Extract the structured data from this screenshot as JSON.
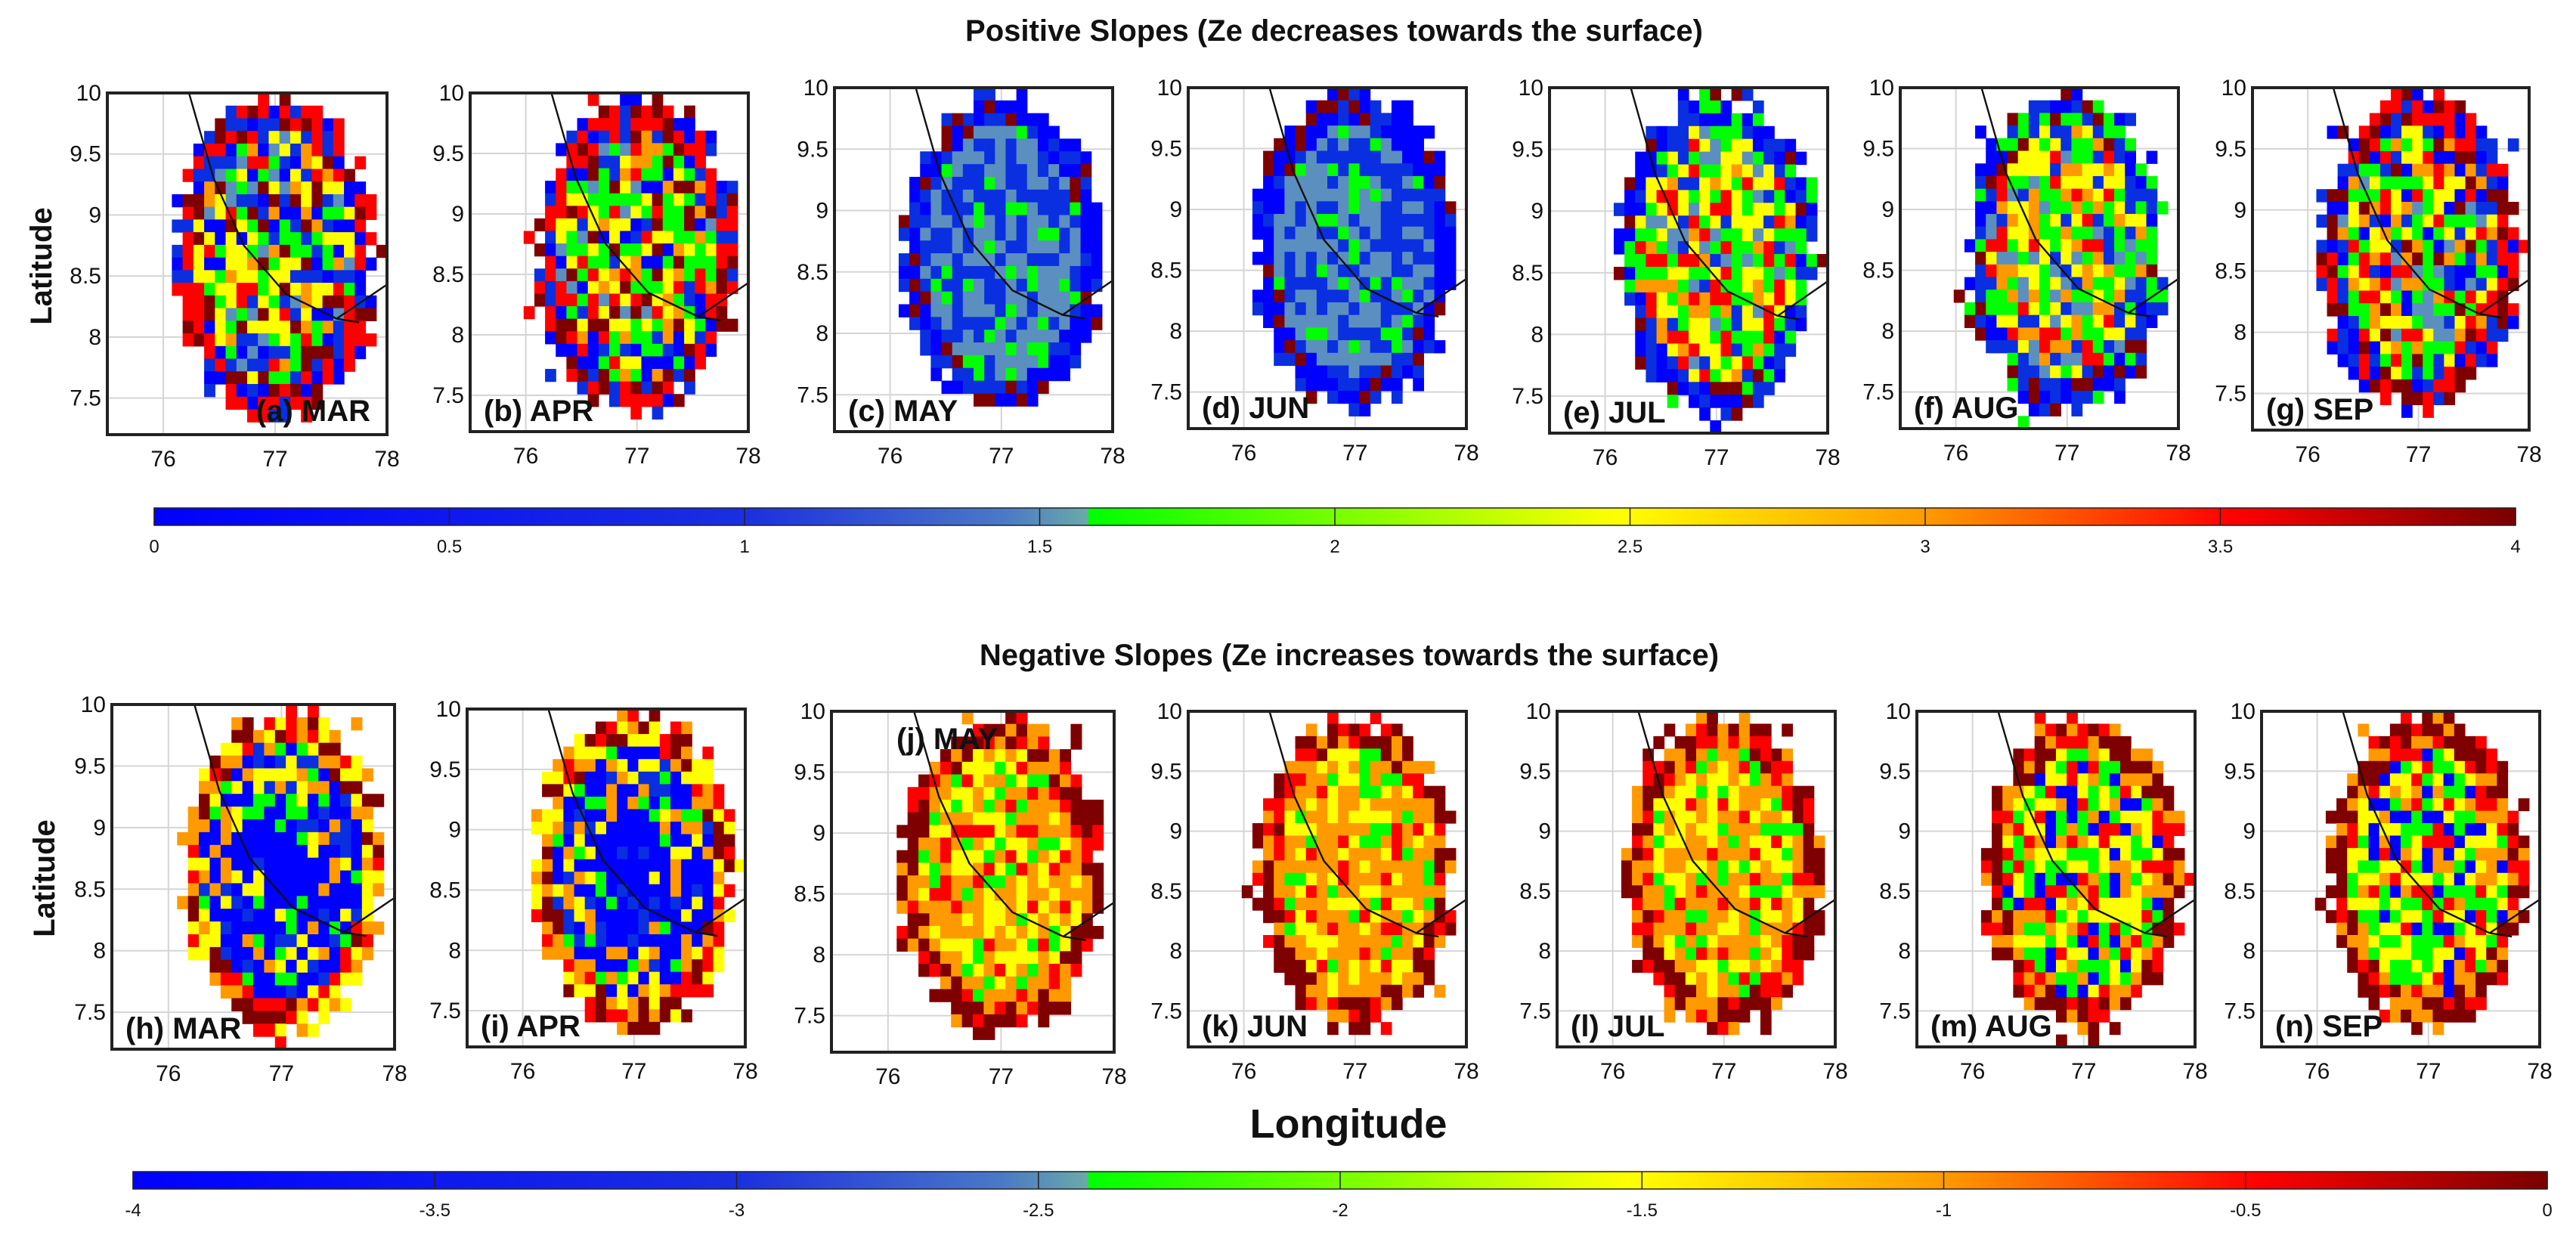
{
  "chart_data": {
    "type": "heatmap",
    "rows": [
      {
        "title": "Positive Slopes (Ze decreases towards the surface)",
        "colorbar": {
          "min": 0,
          "max": 4,
          "ticks": [
            "0",
            "0.5",
            "1",
            "1.5",
            "2",
            "2.5",
            "3",
            "3.5",
            "4"
          ]
        },
        "panels": [
          {
            "label": "(a) MAR",
            "pattern": "mixed",
            "label_pos": "bottom-right"
          },
          {
            "label": "(b) APR",
            "pattern": "mixed",
            "label_pos": "bottom-left"
          },
          {
            "label": "(c) MAY",
            "pattern": "blue",
            "label_pos": "bottom-left"
          },
          {
            "label": "(d) JUN",
            "pattern": "blue",
            "label_pos": "bottom-left"
          },
          {
            "label": "(e) JUL",
            "pattern": "mixed2",
            "label_pos": "bottom-left"
          },
          {
            "label": "(f) AUG",
            "pattern": "mixed2",
            "label_pos": "bottom-left"
          },
          {
            "label": "(g) SEP",
            "pattern": "mixed",
            "label_pos": "bottom-left"
          }
        ]
      },
      {
        "title": "Negative Slopes (Ze increases towards the surface)",
        "colorbar": {
          "min": -4,
          "max": 0,
          "ticks": [
            "-4",
            "-3.5",
            "-3",
            "-2.5",
            "-2",
            "-1.5",
            "-1",
            "-0.5",
            "0"
          ]
        },
        "panels": [
          {
            "label": "(h) MAR",
            "pattern": "neg-blue",
            "label_pos": "bottom-left"
          },
          {
            "label": "(i) APR",
            "pattern": "neg-blue",
            "label_pos": "bottom-left"
          },
          {
            "label": "(j) MAY",
            "pattern": "neg-warm",
            "label_pos": "top-right"
          },
          {
            "label": "(k) JUN",
            "pattern": "neg-warm",
            "label_pos": "bottom-left"
          },
          {
            "label": "(l) JUL",
            "pattern": "neg-warm",
            "label_pos": "bottom-left"
          },
          {
            "label": "(m) AUG",
            "pattern": "neg-mixed",
            "label_pos": "bottom-left"
          },
          {
            "label": "(n) SEP",
            "pattern": "neg-mixed",
            "label_pos": "bottom-left"
          }
        ]
      }
    ],
    "ylabel": "Latitude",
    "xlabel": "Longitude",
    "xticks": [
      "76",
      "77",
      "78"
    ],
    "yticks": [
      "7.5",
      "8",
      "8.5",
      "9",
      "9.5",
      "10"
    ],
    "xlim": [
      75.5,
      78
    ],
    "ylim": [
      7.2,
      10
    ],
    "grid": true,
    "colormap": [
      "#0000ff",
      "#0a2fe0",
      "#5b8fbf",
      "#00ff00",
      "#ffff00",
      "#ff9900",
      "#ff0000",
      "#7f0000"
    ]
  }
}
